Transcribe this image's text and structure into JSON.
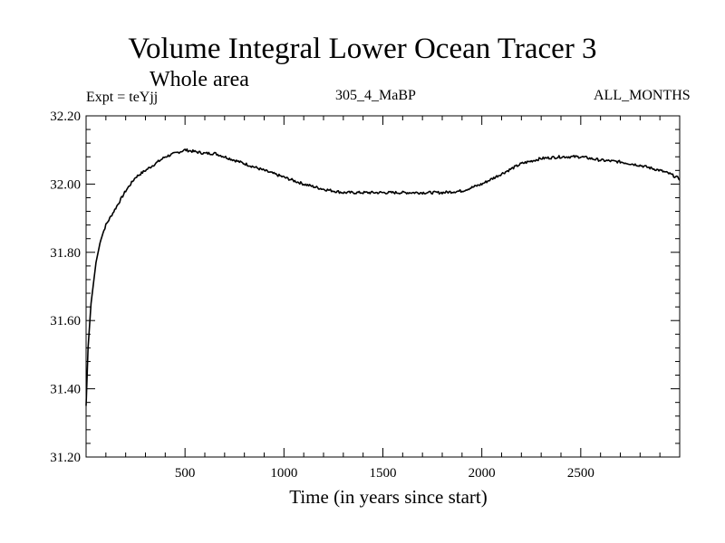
{
  "chart_data": {
    "type": "line",
    "title": "Volume Integral Lower Ocean Tracer 3",
    "subtitle": "Whole area",
    "expt_label": "Expt = teYjj",
    "run_label": "305_4_MaBP",
    "period_label": "ALL_MONTHS",
    "xlabel": "Time (in years since start)",
    "ylabel": "",
    "xlim": [
      0,
      3000
    ],
    "ylim": [
      31.2,
      32.2
    ],
    "x_ticks": [
      500,
      1000,
      1500,
      2000,
      2500
    ],
    "x_tick_labels": [
      "500",
      "1000",
      "1500",
      "2000",
      "2500"
    ],
    "y_ticks": [
      31.2,
      31.4,
      31.6,
      31.8,
      32.0,
      32.2
    ],
    "y_tick_labels": [
      "31.20",
      "31.40",
      "31.60",
      "31.80",
      "32.00",
      "32.20"
    ],
    "series": [
      {
        "name": "Volume Integral Lower Ocean Tracer 3",
        "color": "#000000",
        "x": [
          0,
          10,
          25,
          50,
          75,
          100,
          150,
          200,
          250,
          300,
          350,
          400,
          450,
          500,
          550,
          600,
          650,
          700,
          800,
          900,
          1000,
          1100,
          1200,
          1300,
          1400,
          1500,
          1600,
          1700,
          1800,
          1900,
          2000,
          2100,
          2200,
          2300,
          2400,
          2450,
          2500,
          2600,
          2700,
          2800,
          2900,
          2950,
          3000
        ],
        "y": [
          31.35,
          31.52,
          31.65,
          31.77,
          31.84,
          31.88,
          31.93,
          31.98,
          32.02,
          32.04,
          32.06,
          32.08,
          32.09,
          32.1,
          32.095,
          32.09,
          32.09,
          32.08,
          32.06,
          32.04,
          32.02,
          32.0,
          31.985,
          31.975,
          31.975,
          31.975,
          31.975,
          31.975,
          31.975,
          31.98,
          32.0,
          32.03,
          32.06,
          32.075,
          32.08,
          32.08,
          32.08,
          32.07,
          32.065,
          32.055,
          32.04,
          32.03,
          32.015
        ]
      }
    ]
  }
}
